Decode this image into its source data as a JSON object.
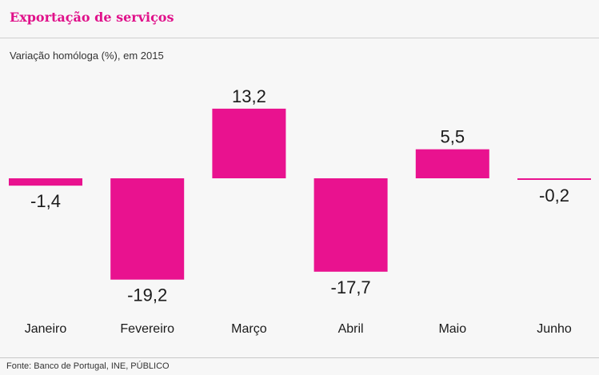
{
  "title": "Exportação de serviços",
  "subtitle": "Variação homóloga (%), em 2015",
  "source": "Fonte: Banco de Portugal, INE, PÚBLICO",
  "colors": {
    "bar": "#e9128f",
    "title": "#e0118a",
    "background": "#f7f7f7"
  },
  "chart_data": {
    "type": "bar",
    "categories": [
      "Janeiro",
      "Fevereiro",
      "Março",
      "Abril",
      "Maio",
      "Junho"
    ],
    "values": [
      -1.4,
      -19.2,
      13.2,
      -17.7,
      5.5,
      -0.2
    ],
    "value_labels": [
      "-1,4",
      "-19,2",
      "13,2",
      "-17,7",
      "5,5",
      "-0,2"
    ],
    "title": "Exportação de serviços",
    "subtitle": "Variação homóloga (%), em 2015",
    "xlabel": "",
    "ylabel": "",
    "ylim": [
      -20,
      15
    ],
    "grid": false,
    "legend": "none"
  }
}
